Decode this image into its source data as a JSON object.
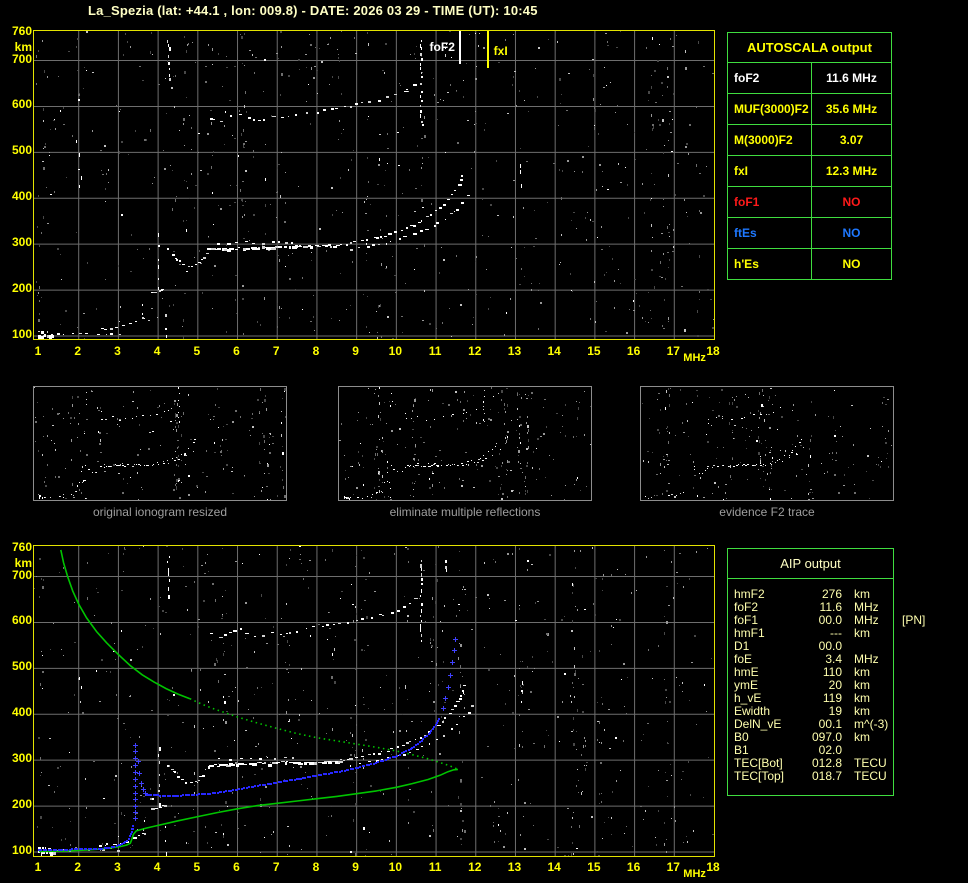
{
  "title": "La_Spezia (lat: +44.1 , lon: 009.8) - DATE: 2026 03 29 - TIME (UT): 10:45",
  "colors": {
    "accent_yellow": "#ffff00",
    "pale_yellow": "#ffffc4",
    "table_green": "#3fdd3f",
    "grid_gray": "#6e6e6e",
    "plot_border": "#e3e300",
    "caption_gray": "#9e9e9e",
    "profile_green": "#00c400",
    "trace_blue": "#2828ff",
    "alert_red": "#ff1a1a",
    "info_blue": "#1e78ff"
  },
  "axes": {
    "x_unit": "MHz",
    "y_unit": "km",
    "x_ticks": [
      1,
      2,
      3,
      4,
      5,
      6,
      7,
      8,
      9,
      10,
      11,
      12,
      13,
      14,
      15,
      16,
      17,
      18
    ],
    "y_ticks": [
      760,
      700,
      600,
      500,
      400,
      300,
      200,
      100
    ],
    "f_range": [
      1,
      18
    ],
    "km_range": [
      100,
      760
    ]
  },
  "top_plot": {
    "markers": [
      {
        "label": "foF2",
        "freq": 11.6,
        "color": "#ffffff",
        "line_height": 33
      },
      {
        "label": "fxI",
        "freq": 12.3,
        "color": "#ffff00",
        "line_height": 37
      }
    ]
  },
  "autoscala": {
    "header": "AUTOSCALA output",
    "rows": [
      {
        "label": "foF2",
        "value": "11.6 MHz",
        "color": "#ffffff"
      },
      {
        "label": "MUF(3000)F2",
        "value": "35.6 MHz",
        "color": "#ffff00"
      },
      {
        "label": "M(3000)F2",
        "value": "3.07",
        "color": "#ffff00"
      },
      {
        "label": "fxI",
        "value": "12.3 MHz",
        "color": "#ffff00"
      },
      {
        "label": "foF1",
        "value": "NO",
        "color": "#ff1a1a"
      },
      {
        "label": "ftEs",
        "value": "NO",
        "color": "#1e78ff"
      },
      {
        "label": "h'Es",
        "value": "NO",
        "color": "#ffff00"
      }
    ]
  },
  "thumbnails": [
    {
      "caption": "original ionogram resized"
    },
    {
      "caption": "eliminate multiple reflections"
    },
    {
      "caption": "evidence F2 trace"
    }
  ],
  "aip": {
    "header": "AIP output",
    "rows": [
      {
        "name": "hmF2",
        "value": "276",
        "unit": "km",
        "note": ""
      },
      {
        "name": "foF2",
        "value": "11.6",
        "unit": "MHz",
        "note": ""
      },
      {
        "name": "foF1",
        "value": "00.0",
        "unit": "MHz",
        "note": "[PN]"
      },
      {
        "name": "hmF1",
        "value": "---",
        "unit": "km",
        "note": ""
      },
      {
        "name": "D1",
        "value": "00.0",
        "unit": "",
        "note": ""
      },
      {
        "name": "foE",
        "value": "3.4",
        "unit": "MHz",
        "note": ""
      },
      {
        "name": "hmE",
        "value": "110",
        "unit": "km",
        "note": ""
      },
      {
        "name": "ymE",
        "value": "20",
        "unit": "km",
        "note": ""
      },
      {
        "name": "h_vE",
        "value": "119",
        "unit": "km",
        "note": ""
      },
      {
        "name": "Ewidth",
        "value": "19",
        "unit": "km",
        "note": ""
      },
      {
        "name": "DelN_vE",
        "value": "00.1",
        "unit": "m^(-3)",
        "note": ""
      },
      {
        "name": "B0",
        "value": "097.0",
        "unit": "km",
        "note": ""
      },
      {
        "name": "B1",
        "value": "02.0",
        "unit": "",
        "note": ""
      },
      {
        "name": "TEC[Bot]",
        "value": "012.8",
        "unit": "TECU",
        "note": ""
      },
      {
        "name": "TEC[Top]",
        "value": "018.7",
        "unit": "TECU",
        "note": ""
      }
    ]
  },
  "chart_data": {
    "type": "scatter",
    "title": "Ionogram with AUTOSCALA scaling and AIP inversion",
    "x_axis": {
      "label": "MHz",
      "range": [
        1,
        18
      ]
    },
    "y_axis": {
      "label": "km",
      "range": [
        100,
        760
      ]
    },
    "scaled_values": {
      "foF2_MHz": 11.6,
      "fxI_MHz": 12.3,
      "hmF2_km": 276,
      "foE_MHz": 3.4,
      "hmE_km": 110
    },
    "echo_segments": [
      {
        "name": "E-layer-blob",
        "gap": 2,
        "dash": [
          3,
          4
        ],
        "pts": [
          [
            1.0,
            101
          ],
          [
            1.38,
            101
          ]
        ]
      },
      {
        "name": "E-layer-blob2",
        "gap": 3,
        "dash": [
          3,
          3
        ],
        "pts": [
          [
            1.0,
            109
          ],
          [
            1.28,
            110
          ]
        ]
      },
      {
        "name": "E-layer-dots",
        "gap": 8,
        "dash": [
          3,
          2
        ],
        "pts": [
          [
            1.45,
            104
          ],
          [
            3.05,
            105
          ]
        ]
      },
      {
        "name": "E-F-rise",
        "gap": 5,
        "dash": [
          3,
          2
        ],
        "pts": [
          [
            2.55,
            114
          ],
          [
            3.0,
            120
          ],
          [
            3.35,
            130
          ],
          [
            3.62,
            141
          ]
        ]
      },
      {
        "name": "Es-vertical",
        "gap": 8,
        "vert": true,
        "pts": [
          [
            3.64,
            140
          ],
          [
            3.64,
            188
          ]
        ]
      },
      {
        "name": "F1-cusp",
        "gap": 3,
        "dash": [
          3,
          2
        ],
        "pts": [
          [
            3.82,
            193
          ],
          [
            4.16,
            200
          ]
        ]
      },
      {
        "name": "cusp-spread-vert",
        "gap": 9,
        "vert": true,
        "pts": [
          [
            4.02,
            205
          ],
          [
            4.02,
            332
          ]
        ]
      },
      {
        "name": "low-vertical",
        "gap": 10,
        "vert": true,
        "pts": [
          [
            4.2,
            100
          ],
          [
            4.2,
            168
          ]
        ]
      },
      {
        "name": "F-dip",
        "gap": 4,
        "dash": [
          3,
          2
        ],
        "pts": [
          [
            4.25,
            289
          ],
          [
            4.45,
            268
          ],
          [
            4.62,
            255
          ],
          [
            4.82,
            250
          ],
          [
            5.0,
            256
          ],
          [
            5.12,
            268
          ],
          [
            5.2,
            281
          ]
        ]
      },
      {
        "name": "F2-flat",
        "gap": 3,
        "dash": [
          4,
          2.5
        ],
        "pts": [
          [
            5.25,
            288
          ],
          [
            6.0,
            291
          ],
          [
            7.0,
            294
          ],
          [
            8.0,
            296
          ],
          [
            8.55,
            298
          ]
        ]
      },
      {
        "name": "F2-flat-lower",
        "gap": 9,
        "dash": [
          3,
          2
        ],
        "pts": [
          [
            5.5,
            301
          ],
          [
            6.5,
            304
          ],
          [
            7.4,
            306
          ]
        ]
      },
      {
        "name": "F2-rise-o",
        "gap": 5,
        "dash": [
          3,
          2
        ],
        "pts": [
          [
            8.6,
            299
          ],
          [
            9.0,
            305
          ],
          [
            9.4,
            313
          ],
          [
            9.8,
            322
          ],
          [
            10.2,
            334
          ],
          [
            10.6,
            350
          ],
          [
            10.9,
            367
          ],
          [
            11.15,
            385
          ],
          [
            11.35,
            404
          ],
          [
            11.5,
            422
          ],
          [
            11.63,
            443
          ],
          [
            11.72,
            461
          ]
        ]
      },
      {
        "name": "F2-rise-x",
        "gap": 7,
        "dash": [
          3,
          2
        ],
        "pts": [
          [
            8.85,
            290
          ],
          [
            9.35,
            297
          ],
          [
            9.85,
            306
          ],
          [
            10.35,
            319
          ],
          [
            10.8,
            335
          ],
          [
            11.2,
            355
          ],
          [
            11.5,
            377
          ],
          [
            11.75,
            398
          ],
          [
            11.92,
            419
          ]
        ]
      },
      {
        "name": "second-hop-arc",
        "gap": 7,
        "dash": [
          3,
          2
        ],
        "pts": [
          [
            5.3,
            575
          ],
          [
            5.55,
            568
          ],
          [
            5.8,
            579
          ],
          [
            6.05,
            585
          ],
          [
            6.3,
            574
          ],
          [
            6.55,
            569
          ],
          [
            6.8,
            578
          ],
          [
            7.05,
            572
          ],
          [
            7.3,
            578
          ],
          [
            7.6,
            583
          ],
          [
            7.9,
            588
          ],
          [
            8.2,
            592
          ],
          [
            8.5,
            597
          ],
          [
            8.8,
            601
          ],
          [
            9.1,
            606
          ],
          [
            9.4,
            611
          ],
          [
            9.7,
            618
          ],
          [
            10.0,
            626
          ],
          [
            10.25,
            636
          ],
          [
            10.45,
            650
          ],
          [
            10.58,
            663
          ]
        ]
      },
      {
        "name": "second-hop-spread",
        "gap": 5,
        "vert": true,
        "pts": [
          [
            10.63,
            560
          ],
          [
            10.63,
            745
          ]
        ]
      },
      {
        "name": "hop-blob",
        "gap": 5,
        "vert": true,
        "pts": [
          [
            11.25,
            715
          ],
          [
            11.25,
            738
          ]
        ]
      },
      {
        "name": "top-vertical-streak",
        "gap": 6,
        "vert": true,
        "pts": [
          [
            4.27,
            660
          ],
          [
            4.27,
            753
          ]
        ]
      },
      {
        "name": "stray-column",
        "gap": 16,
        "vert": true,
        "pts": [
          [
            2.05,
            428
          ],
          [
            2.05,
            502
          ]
        ]
      },
      {
        "name": "right-streak",
        "gap": 11,
        "vert": true,
        "pts": [
          [
            13.15,
            428
          ],
          [
            13.15,
            488
          ]
        ]
      }
    ],
    "profile": {
      "color": "#00c400",
      "lower": [
        [
          1.0,
          101
        ],
        [
          1.6,
          102
        ],
        [
          2.1,
          104
        ],
        [
          2.5,
          106
        ],
        [
          2.8,
          109
        ],
        [
          3.05,
          112
        ],
        [
          3.2,
          115
        ],
        [
          3.3,
          119
        ],
        [
          3.34,
          128
        ],
        [
          3.38,
          139
        ],
        [
          3.45,
          146
        ],
        [
          3.7,
          152
        ],
        [
          4.0,
          158
        ],
        [
          4.5,
          168
        ],
        [
          5.0,
          177
        ],
        [
          5.5,
          186
        ],
        [
          6.0,
          194
        ],
        [
          6.5,
          201
        ],
        [
          7.0,
          206
        ],
        [
          7.5,
          211
        ],
        [
          8.0,
          216
        ],
        [
          8.5,
          221
        ],
        [
          9.0,
          227
        ],
        [
          9.5,
          233
        ],
        [
          10.0,
          241
        ],
        [
          10.4,
          249
        ],
        [
          10.8,
          258
        ],
        [
          11.1,
          267
        ],
        [
          11.3,
          275
        ],
        [
          11.45,
          279
        ],
        [
          11.55,
          280
        ]
      ],
      "upper_solid": [
        [
          1.55,
          758
        ],
        [
          1.62,
          730
        ],
        [
          1.72,
          700
        ],
        [
          1.85,
          668
        ],
        [
          2.0,
          640
        ],
        [
          2.2,
          610
        ],
        [
          2.45,
          580
        ],
        [
          2.7,
          556
        ],
        [
          3.0,
          530
        ],
        [
          3.3,
          506
        ],
        [
          3.6,
          486
        ],
        [
          3.9,
          470
        ],
        [
          4.2,
          456
        ],
        [
          4.5,
          444
        ],
        [
          4.8,
          434
        ]
      ],
      "upper_dotted": [
        [
          4.8,
          434
        ],
        [
          5.1,
          422
        ],
        [
          5.4,
          412
        ],
        [
          5.7,
          403
        ],
        [
          6.0,
          394
        ],
        [
          6.5,
          381
        ],
        [
          7.0,
          369
        ],
        [
          7.5,
          358
        ],
        [
          8.0,
          349
        ],
        [
          8.5,
          342
        ],
        [
          9.0,
          335
        ],
        [
          9.5,
          328
        ],
        [
          10.0,
          320
        ],
        [
          10.4,
          312
        ],
        [
          10.8,
          303
        ],
        [
          11.1,
          295
        ],
        [
          11.3,
          289
        ],
        [
          11.45,
          284
        ],
        [
          11.55,
          280
        ]
      ]
    },
    "restored_trace": {
      "color": "#2828ff",
      "dense": [
        [
          1.0,
          104
        ],
        [
          1.6,
          104
        ],
        [
          2.2,
          105
        ],
        [
          2.6,
          106
        ],
        [
          2.85,
          109
        ],
        [
          3.05,
          114
        ],
        [
          3.18,
          120
        ],
        [
          3.27,
          128
        ],
        [
          3.33,
          138
        ],
        [
          3.37,
          150
        ],
        [
          3.39,
          160
        ]
      ],
      "column_f": 3.43,
      "column_heights": [
        172,
        186,
        200,
        214,
        228,
        243,
        258,
        273,
        288,
        303,
        318,
        332
      ],
      "descend": [
        [
          3.5,
          298
        ],
        [
          3.53,
          272
        ],
        [
          3.57,
          250
        ],
        [
          3.62,
          237
        ],
        [
          3.68,
          228
        ]
      ],
      "main": [
        [
          3.72,
          224
        ],
        [
          4.0,
          222
        ],
        [
          4.4,
          221
        ],
        [
          4.8,
          223
        ],
        [
          5.2,
          225
        ],
        [
          5.6,
          229
        ],
        [
          6.0,
          235
        ],
        [
          6.4,
          241
        ],
        [
          6.8,
          247
        ],
        [
          7.2,
          253
        ],
        [
          7.6,
          259
        ],
        [
          8.0,
          265
        ],
        [
          8.4,
          271
        ],
        [
          8.8,
          278
        ],
        [
          9.2,
          286
        ],
        [
          9.5,
          293
        ],
        [
          9.8,
          301
        ],
        [
          10.1,
          311
        ],
        [
          10.4,
          325
        ],
        [
          10.65,
          341
        ],
        [
          10.85,
          358
        ],
        [
          11.0,
          375
        ],
        [
          11.1,
          392
        ]
      ],
      "steep": [
        [
          11.18,
          412
        ],
        [
          11.25,
          434
        ],
        [
          11.31,
          458
        ],
        [
          11.37,
          484
        ],
        [
          11.42,
          512
        ],
        [
          11.47,
          540
        ],
        [
          11.5,
          562
        ]
      ]
    }
  }
}
